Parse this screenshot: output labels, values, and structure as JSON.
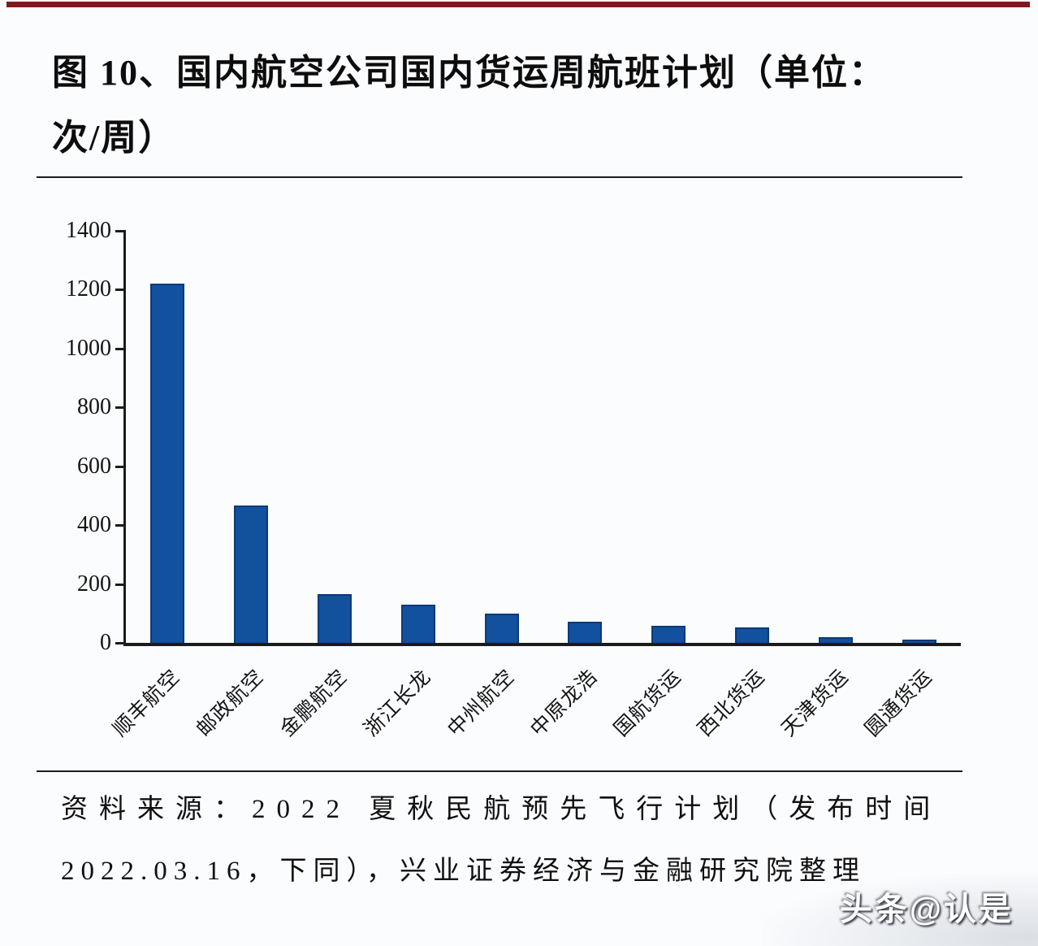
{
  "figure": {
    "title_line1": "图 10、国内航空公司国内货运周航班计划（单位：",
    "title_line2": "次/周）"
  },
  "chart_data": {
    "type": "bar",
    "title": "国内航空公司国内货运周航班计划",
    "unit": "次/周",
    "categories": [
      "顺丰航空",
      "邮政航空",
      "金鹏航空",
      "浙江长龙",
      "中州航空",
      "中原龙浩",
      "国航货运",
      "西北货运",
      "天津货运",
      "圆通货运"
    ],
    "values": [
      1220,
      468,
      167,
      131,
      100,
      71,
      58,
      52,
      19,
      11
    ],
    "xlabel": "",
    "ylabel": "",
    "ylim": [
      0,
      1400
    ],
    "yticks": [
      1400,
      1200,
      1000,
      800,
      600,
      400,
      200,
      0
    ],
    "grid": false,
    "legend": "none",
    "bar_color": "#11519e",
    "bar_border_color": "#0c3a78"
  },
  "source": {
    "line1": "资料来源：2022 夏秋民航预先飞行计划（发布时间",
    "line2": "2022.03.16，下同），兴业证券经济与金融研究院整理"
  },
  "watermark": {
    "text": "头条@认是"
  },
  "colors": {
    "accent_bar": "#7c1a20",
    "axis": "#1b1b1b",
    "text": "#111111"
  }
}
